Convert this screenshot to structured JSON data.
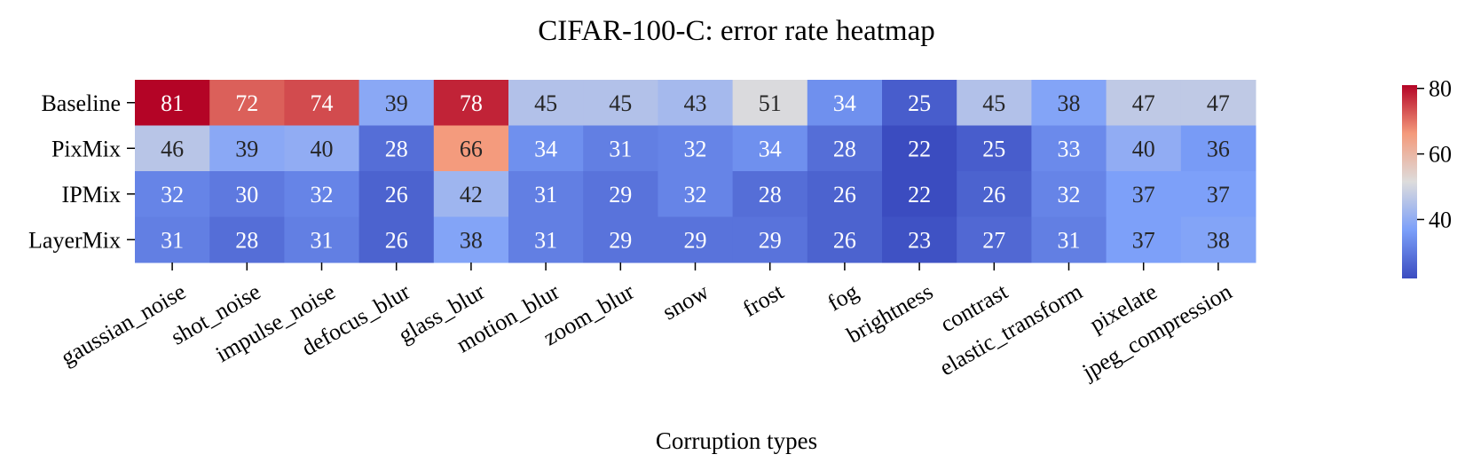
{
  "chart_data": {
    "type": "heatmap",
    "title": "CIFAR-100-C: error rate heatmap",
    "xlabel": "Corruption types",
    "ylabel": "",
    "rows": [
      "Baseline",
      "PixMix",
      "IPMix",
      "LayerMix"
    ],
    "columns": [
      "gaussian_noise",
      "shot_noise",
      "impulse_noise",
      "defocus_blur",
      "glass_blur",
      "motion_blur",
      "zoom_blur",
      "snow",
      "frost",
      "fog",
      "brightness",
      "contrast",
      "elastic_transform",
      "pixelate",
      "jpeg_compression"
    ],
    "values": [
      [
        81,
        72,
        74,
        39,
        78,
        45,
        45,
        43,
        51,
        34,
        25,
        45,
        38,
        47,
        47
      ],
      [
        46,
        39,
        40,
        28,
        66,
        34,
        31,
        32,
        34,
        28,
        22,
        25,
        33,
        40,
        36
      ],
      [
        32,
        30,
        32,
        26,
        42,
        31,
        29,
        32,
        28,
        26,
        22,
        26,
        32,
        37,
        37
      ],
      [
        31,
        28,
        31,
        26,
        38,
        31,
        29,
        29,
        29,
        26,
        23,
        27,
        31,
        37,
        38
      ]
    ],
    "colormap": "coolwarm",
    "vmin": 22,
    "vmax": 81,
    "colorbar_ticks": [
      40,
      60,
      80
    ],
    "legend": "right colorbar"
  }
}
